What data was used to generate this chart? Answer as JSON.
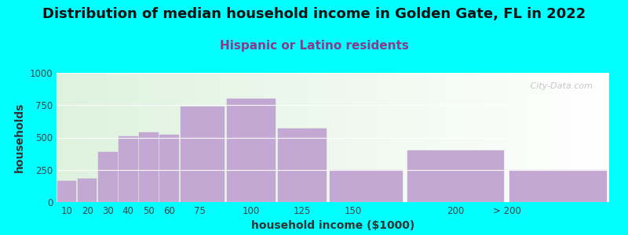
{
  "title": "Distribution of median household income in Golden Gate, FL in 2022",
  "subtitle": "Hispanic or Latino residents",
  "xlabel": "household income ($1000)",
  "ylabel": "households",
  "background_color": "#00FFFF",
  "bar_color": "#C4A8D4",
  "categories": [
    "10",
    "20",
    "30",
    "40",
    "50",
    "60",
    "75",
    "100",
    "125",
    "150",
    "200",
    "> 200"
  ],
  "left_edges": [
    5,
    15,
    25,
    35,
    45,
    55,
    65,
    87.5,
    112.5,
    137.5,
    175,
    225
  ],
  "widths": [
    10,
    10,
    10,
    10,
    10,
    10,
    22.5,
    25,
    25,
    37.5,
    50,
    50
  ],
  "values": [
    165,
    180,
    385,
    510,
    540,
    520,
    740,
    800,
    570,
    250,
    400,
    250
  ],
  "ylim": [
    0,
    1000
  ],
  "yticks": [
    0,
    250,
    500,
    750,
    1000
  ],
  "title_fontsize": 13,
  "subtitle_fontsize": 11,
  "subtitle_color": "#8B3A8B",
  "axis_label_fontsize": 10,
  "tick_fontsize": 8.5,
  "watermark": "   City-Data.com",
  "watermark_color": "#B0B0B0",
  "tick_positions": [
    10,
    20,
    30,
    40,
    50,
    60,
    75,
    100,
    125,
    150,
    200,
    225
  ],
  "tick_labels": [
    "10",
    "20",
    "30",
    "40",
    "50",
    "60",
    "75",
    "100",
    "125",
    "150",
    "200",
    "> 200"
  ]
}
